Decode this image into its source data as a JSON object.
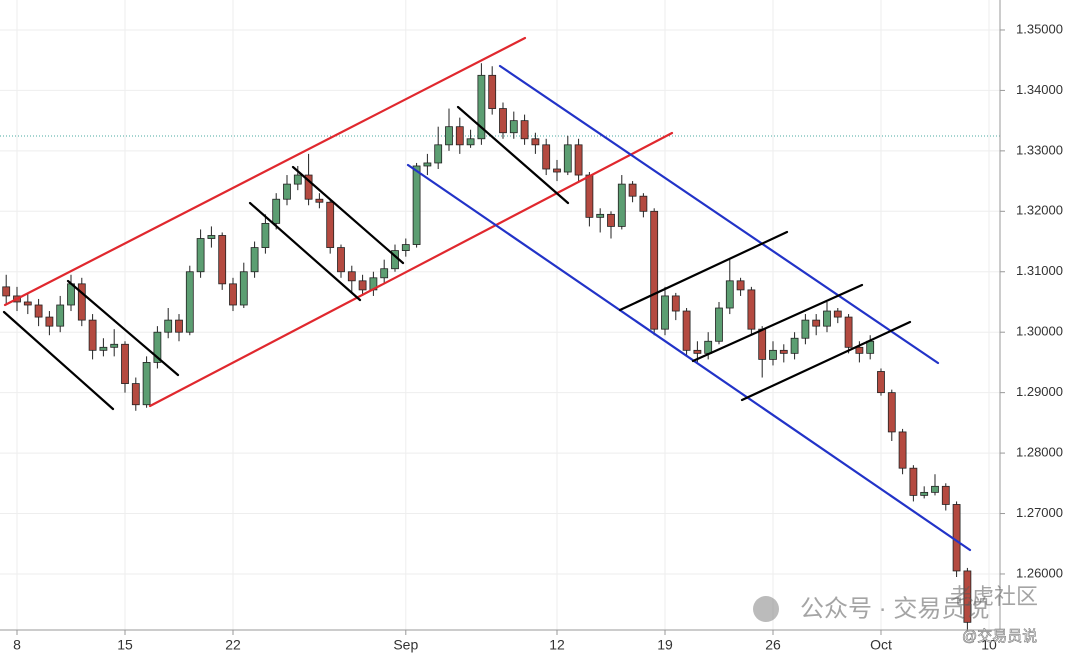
{
  "chart_data": {
    "type": "candlestick",
    "up_color": "#5c9e72",
    "down_color": "#b44a40",
    "grid": true,
    "xlim": [
      -0.787,
      45.51
    ],
    "ylim": [
      1.25073,
      1.35496
    ],
    "xticks": [
      {
        "value": 0,
        "label": "8"
      },
      {
        "value": 5,
        "label": "15"
      },
      {
        "value": 10,
        "label": "22"
      },
      {
        "value": 18,
        "label": "Sep"
      },
      {
        "value": 25,
        "label": "12"
      },
      {
        "value": 30,
        "label": "19"
      },
      {
        "value": 35,
        "label": "26"
      },
      {
        "value": 40,
        "label": "Oct"
      },
      {
        "value": 45,
        "label": "10"
      }
    ],
    "yticks": [
      {
        "value": 1.26,
        "label": "1.26000"
      },
      {
        "value": 1.27,
        "label": "1.27000"
      },
      {
        "value": 1.28,
        "label": "1.28000"
      },
      {
        "value": 1.29,
        "label": "1.29000"
      },
      {
        "value": 1.3,
        "label": "1.30000"
      },
      {
        "value": 1.31,
        "label": "1.31000"
      },
      {
        "value": 1.32,
        "label": "1.32000"
      },
      {
        "value": 1.33,
        "label": "1.33000"
      },
      {
        "value": 1.34,
        "label": "1.34000"
      },
      {
        "value": 1.35,
        "label": "1.35000"
      }
    ],
    "x": [
      -0.5,
      0,
      0.5,
      1,
      1.5,
      2,
      2.5,
      3,
      3.5,
      4,
      4.5,
      5,
      5.5,
      6,
      6.5,
      7,
      7.5,
      8,
      8.5,
      9,
      9.5,
      10,
      10.5,
      11,
      11.5,
      12,
      12.5,
      13,
      13.5,
      14,
      14.5,
      15,
      15.5,
      16,
      16.5,
      17,
      17.5,
      18,
      18.5,
      19,
      19.5,
      20,
      20.5,
      21,
      21.5,
      22,
      22.5,
      23,
      23.5,
      24,
      24.5,
      25,
      25.5,
      26,
      26.5,
      27,
      27.5,
      28,
      28.5,
      29,
      29.5,
      30,
      30.5,
      31,
      31.5,
      32,
      32.5,
      33,
      33.5,
      34,
      34.5,
      35,
      35.5,
      36,
      36.5,
      37,
      37.5,
      38,
      38.5,
      39,
      39.5,
      40,
      40.5,
      41,
      41.5,
      42,
      42.5,
      43,
      43.5,
      44
    ],
    "open": [
      1.3075,
      1.306,
      1.305,
      1.3045,
      1.3025,
      1.301,
      1.3045,
      1.308,
      1.302,
      1.297,
      1.2975,
      1.298,
      1.2915,
      1.288,
      1.295,
      1.3,
      1.302,
      1.3,
      1.31,
      1.3155,
      1.316,
      1.308,
      1.3045,
      1.31,
      1.314,
      1.318,
      1.322,
      1.3245,
      1.326,
      1.322,
      1.3215,
      1.314,
      1.31,
      1.3085,
      1.307,
      1.309,
      1.3105,
      1.3135,
      1.3145,
      1.3275,
      1.328,
      1.331,
      1.334,
      1.331,
      1.332,
      1.3425,
      1.337,
      1.333,
      1.335,
      1.332,
      1.331,
      1.327,
      1.3265,
      1.331,
      1.326,
      1.319,
      1.3195,
      1.3175,
      1.3245,
      1.3225,
      1.32,
      1.3005,
      1.306,
      1.3035,
      1.297,
      1.2965,
      1.2985,
      1.304,
      1.3085,
      1.307,
      1.3005,
      1.2955,
      1.297,
      1.2965,
      1.299,
      1.302,
      1.301,
      1.3035,
      1.3025,
      1.2975,
      1.2965,
      1.2935,
      1.29,
      1.2835,
      1.2775,
      1.273,
      1.2735,
      1.2745,
      1.2715,
      1.2605
    ],
    "high": [
      1.3095,
      1.3075,
      1.3065,
      1.3055,
      1.3035,
      1.306,
      1.3095,
      1.309,
      1.303,
      1.299,
      1.3005,
      1.2985,
      1.2925,
      1.296,
      1.301,
      1.304,
      1.303,
      1.311,
      1.317,
      1.3175,
      1.3165,
      1.309,
      1.3115,
      1.315,
      1.3195,
      1.323,
      1.326,
      1.3275,
      1.3295,
      1.323,
      1.322,
      1.3145,
      1.311,
      1.3095,
      1.31,
      1.312,
      1.3145,
      1.3155,
      1.328,
      1.3295,
      1.334,
      1.337,
      1.3355,
      1.3335,
      1.3445,
      1.344,
      1.338,
      1.3365,
      1.336,
      1.333,
      1.332,
      1.3285,
      1.3325,
      1.332,
      1.3265,
      1.3205,
      1.32,
      1.326,
      1.325,
      1.323,
      1.3205,
      1.3075,
      1.3065,
      1.304,
      1.2985,
      1.3,
      1.305,
      1.312,
      1.309,
      1.3075,
      1.301,
      1.2985,
      1.298,
      1.3,
      1.303,
      1.303,
      1.305,
      1.304,
      1.303,
      1.2985,
      1.2995,
      1.294,
      1.2905,
      1.284,
      1.278,
      1.2745,
      1.2765,
      1.275,
      1.272,
      1.261
    ],
    "low": [
      1.3045,
      1.3035,
      1.303,
      1.301,
      1.2995,
      1.3,
      1.3035,
      1.301,
      1.2955,
      1.296,
      1.296,
      1.29,
      1.287,
      1.2875,
      1.294,
      1.299,
      1.2985,
      1.2995,
      1.309,
      1.314,
      1.307,
      1.3035,
      1.304,
      1.309,
      1.313,
      1.317,
      1.321,
      1.3235,
      1.321,
      1.3205,
      1.313,
      1.309,
      1.3065,
      1.306,
      1.306,
      1.308,
      1.31,
      1.3125,
      1.314,
      1.326,
      1.327,
      1.33,
      1.3295,
      1.3305,
      1.331,
      1.336,
      1.332,
      1.332,
      1.331,
      1.3295,
      1.326,
      1.325,
      1.326,
      1.325,
      1.3175,
      1.3165,
      1.3155,
      1.317,
      1.3215,
      1.319,
      1.2995,
      1.2995,
      1.302,
      1.296,
      1.295,
      1.2955,
      1.298,
      1.303,
      1.306,
      1.2995,
      1.2925,
      1.2945,
      1.295,
      1.2955,
      1.298,
      1.2995,
      1.3,
      1.3015,
      1.2965,
      1.295,
      1.2955,
      1.2895,
      1.282,
      1.2765,
      1.272,
      1.2725,
      1.273,
      1.2705,
      1.2595,
      1.2505
    ],
    "close": [
      1.306,
      1.305,
      1.3045,
      1.3025,
      1.301,
      1.3045,
      1.308,
      1.302,
      1.297,
      1.2975,
      1.298,
      1.2915,
      1.288,
      1.295,
      1.3,
      1.302,
      1.3,
      1.31,
      1.3155,
      1.316,
      1.308,
      1.3045,
      1.31,
      1.314,
      1.318,
      1.322,
      1.3245,
      1.326,
      1.322,
      1.3215,
      1.314,
      1.31,
      1.3085,
      1.307,
      1.309,
      1.3105,
      1.3135,
      1.3145,
      1.3275,
      1.328,
      1.331,
      1.334,
      1.331,
      1.332,
      1.3425,
      1.337,
      1.333,
      1.335,
      1.332,
      1.331,
      1.327,
      1.3265,
      1.331,
      1.326,
      1.319,
      1.3195,
      1.3175,
      1.3245,
      1.3225,
      1.32,
      1.3005,
      1.306,
      1.3035,
      1.297,
      1.2965,
      1.2985,
      1.304,
      1.3085,
      1.307,
      1.3005,
      1.2955,
      1.297,
      1.2965,
      1.299,
      1.302,
      1.301,
      1.3035,
      1.3025,
      1.2975,
      1.2965,
      1.2985,
      1.29,
      1.2835,
      1.2775,
      1.273,
      1.2735,
      1.2745,
      1.2715,
      1.2605,
      1.252
    ]
  },
  "watermarks": {
    "account": "公众号 · 交易员说",
    "community": "老虎社区",
    "handle": "@交易员说"
  }
}
